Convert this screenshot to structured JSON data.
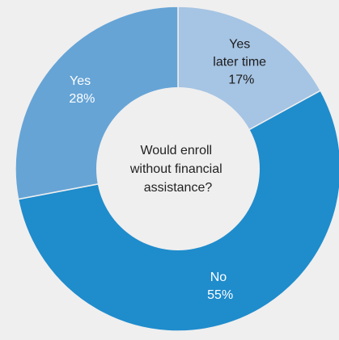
{
  "chart_data": {
    "type": "pie",
    "donut": true,
    "center_text": [
      "Would enroll",
      "without financial",
      "assistance?"
    ],
    "segments": [
      {
        "label_lines": [
          "Yes",
          "later time"
        ],
        "value": 17,
        "value_text": "17%",
        "color": "#a6c4e3",
        "text_color": "#1c1c1c"
      },
      {
        "label_lines": [
          "No"
        ],
        "value": 55,
        "value_text": "55%",
        "color": "#1f8ccc",
        "text_color": "#ffffff"
      },
      {
        "label_lines": [
          "Yes"
        ],
        "value": 28,
        "value_text": "28%",
        "color": "#66a4d6",
        "text_color": "#ffffff"
      }
    ],
    "start_angle_deg": 0,
    "direction": "clockwise",
    "colors": {
      "background": "#efefef",
      "center_fill": "#efefef",
      "separator": "#efefef"
    }
  }
}
